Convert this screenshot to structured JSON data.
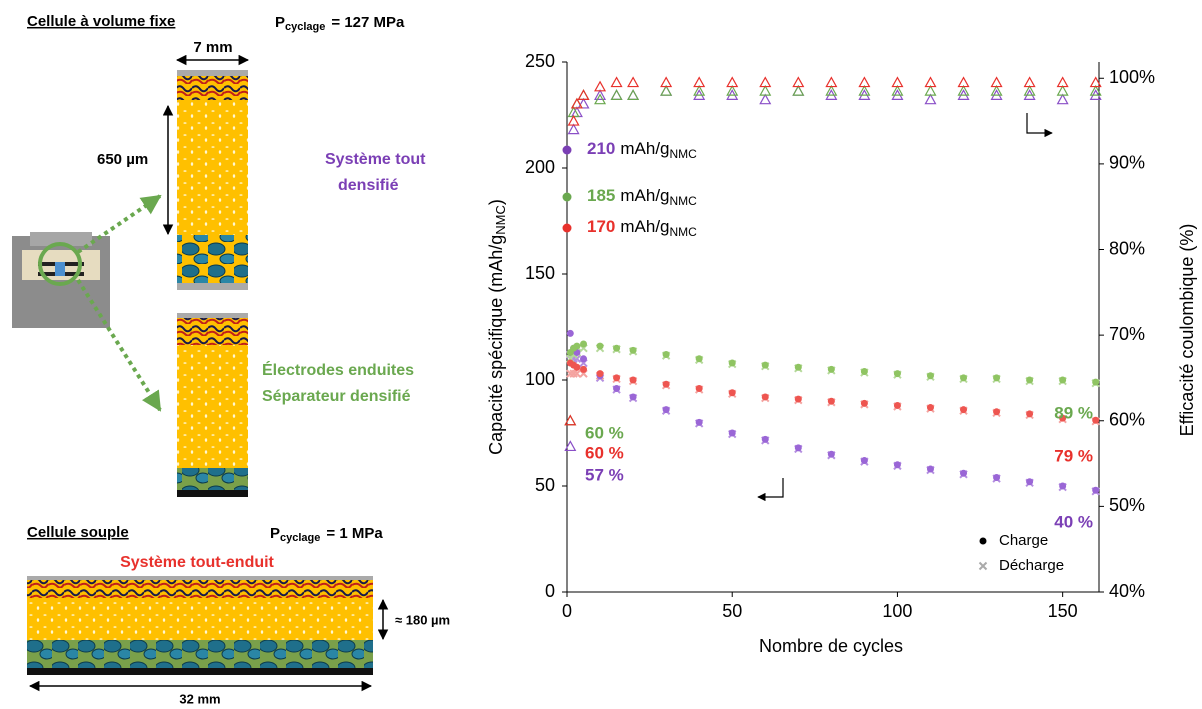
{
  "diagram": {
    "fixed_cell": {
      "title": "Cellule à volume fixe",
      "pressure": {
        "symbol": "P",
        "sub": "cyclage",
        "value": "=  127 MPa"
      },
      "width": "7 mm",
      "thickness": "650 µm",
      "system_dense": [
        "Système tout",
        "densifié"
      ],
      "system_coated": [
        "Électrodes enduites",
        "Séparateur densifié"
      ]
    },
    "soft_cell": {
      "title": "Cellule souple",
      "pressure": {
        "symbol": "P",
        "sub": "cyclage",
        "value": "=  1 MPa"
      },
      "system": "Système tout-enduit",
      "thickness": "≈ 180 µm",
      "width": "32 mm"
    }
  },
  "chart_data": {
    "type": "scatter",
    "xlabel": "Nombre de cycles",
    "ylabel": {
      "main": "Capacité spécifique (mAh/g",
      "sub": "NMC",
      "end": ")"
    },
    "y2label": "Efficacité coulombique (%)",
    "xlim": [
      0,
      161
    ],
    "xticks": [
      0,
      50,
      100,
      150
    ],
    "ylim": [
      0,
      250
    ],
    "yticks": [
      0,
      50,
      100,
      150,
      200,
      250
    ],
    "y2lim": [
      40,
      101.9
    ],
    "y2ticks": [
      {
        "value": 40,
        "label": "40%"
      },
      {
        "value": 50,
        "label": "50%"
      },
      {
        "value": 60,
        "label": "60%"
      },
      {
        "value": 70,
        "label": "70%"
      },
      {
        "value": 80,
        "label": "80%"
      },
      {
        "value": 90,
        "label": "90%"
      },
      {
        "value": 100,
        "label": "100%"
      }
    ],
    "grid": false,
    "x": [
      1,
      2,
      3,
      5,
      10,
      15,
      20,
      30,
      40,
      50,
      60,
      70,
      80,
      90,
      100,
      110,
      120,
      130,
      140,
      150,
      160
    ],
    "series": [
      {
        "marker": "triangle",
        "axis": "y2",
        "color": "#8a4fc7",
        "values": [
          57,
          94,
          96,
          97,
          98,
          98,
          98,
          98.5,
          98,
          98,
          97.5,
          98.5,
          98,
          98,
          98,
          97.5,
          98,
          98,
          98,
          97.5,
          98
        ]
      },
      {
        "marker": "triangle",
        "axis": "y2",
        "color": "#6aa84f",
        "values": [
          60,
          96,
          97,
          98,
          97.5,
          98,
          98,
          98.5,
          98.5,
          98.5,
          98.5,
          98.5,
          98.5,
          98.5,
          98.5,
          98.5,
          98.5,
          98.5,
          98.5,
          98.5,
          98.5
        ]
      },
      {
        "marker": "triangle",
        "axis": "y2",
        "color": "#e8312c",
        "values": [
          60,
          95,
          97,
          98,
          99,
          99.5,
          99.5,
          99.5,
          99.5,
          99.5,
          99.5,
          99.5,
          99.5,
          99.5,
          99.5,
          99.5,
          99.5,
          99.5,
          99.5,
          99.5,
          99.5
        ]
      },
      {
        "marker": "cross",
        "color": "#b48ee0",
        "values": [
          112,
          110,
          110,
          108,
          101,
          95.5,
          91.5,
          85.5,
          79.5,
          74.5,
          71.5,
          67.5,
          64.5,
          61.5,
          59.5,
          57.5,
          55.5,
          53.5,
          51.5,
          49.5,
          47.5
        ]
      },
      {
        "marker": "cross",
        "color": "#b5d99a",
        "values": [
          110,
          112,
          113,
          115,
          115,
          114.5,
          113.5,
          111.5,
          109.5,
          107.5,
          106.5,
          105.5,
          104.5,
          103.5,
          102.5,
          101.5,
          100.5,
          100.5,
          99.5,
          99.5,
          98.5
        ]
      },
      {
        "marker": "cross",
        "color": "#f4a3a0",
        "values": [
          103,
          103,
          103,
          103,
          102,
          100.5,
          99.5,
          97.5,
          95.5,
          93.5,
          91.5,
          90.5,
          89.5,
          88.5,
          87.5,
          86.5,
          85.5,
          84.5,
          83.5,
          81.5,
          80.5
        ]
      },
      {
        "marker": "circle",
        "color": "#9a66d6",
        "values": [
          122,
          115,
          113,
          110,
          102,
          96,
          92,
          86,
          80,
          75,
          72,
          68,
          65,
          62,
          60,
          58,
          56,
          54,
          52,
          50,
          48
        ]
      },
      {
        "marker": "circle",
        "color": "#8fc462",
        "values": [
          113,
          115,
          116,
          117,
          116,
          115,
          114,
          112,
          110,
          108,
          107,
          106,
          105,
          104,
          103,
          102,
          101,
          101,
          100,
          100,
          99
        ]
      },
      {
        "marker": "circle",
        "color": "#ee5550",
        "values": [
          108,
          107,
          106,
          105,
          103,
          101,
          100,
          98,
          96,
          94,
          92,
          91,
          90,
          89,
          88,
          87,
          86,
          85,
          84,
          82,
          81
        ]
      }
    ],
    "legend": [
      {
        "name": "Charge",
        "marker": "circle",
        "color": "#000000"
      },
      {
        "name": "Décharge",
        "marker": "cross",
        "color": "#aaaaaa"
      }
    ],
    "capacity_annotations": [
      {
        "text": "210",
        "unit": "mAh/g",
        "sub": "NMC",
        "color": "#7b3fb5"
      },
      {
        "text": "185",
        "unit": "mAh/g",
        "sub": "NMC",
        "color": "#6aa84f"
      },
      {
        "text": "170",
        "unit": "mAh/g",
        "sub": "NMC",
        "color": "#e8312c"
      }
    ],
    "retention_annotations": [
      {
        "text": "89 %",
        "color": "#6aa84f"
      },
      {
        "text": "79 %",
        "color": "#e8312c"
      },
      {
        "text": "40 %",
        "color": "#7b3fb5"
      },
      {
        "text": "60 %",
        "color": "#6aa84f"
      },
      {
        "text": "60 %",
        "color": "#e8312c"
      },
      {
        "text": "57 %",
        "color": "#7b3fb5"
      }
    ]
  }
}
